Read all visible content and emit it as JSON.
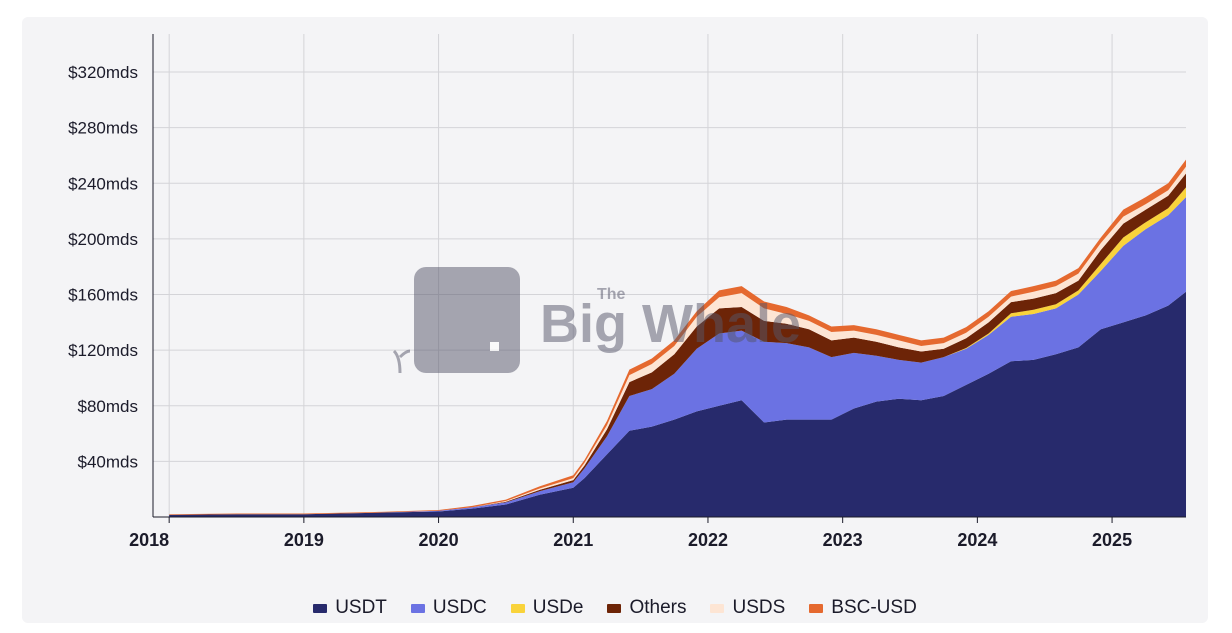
{
  "chart_data": {
    "type": "area",
    "stacked": true,
    "x": [
      "2018-01",
      "2018-07",
      "2019-01",
      "2019-07",
      "2020-01",
      "2020-04",
      "2020-07",
      "2020-10",
      "2021-01",
      "2021-02",
      "2021-04",
      "2021-06",
      "2021-08",
      "2021-10",
      "2021-12",
      "2022-02",
      "2022-04",
      "2022-06",
      "2022-08",
      "2022-10",
      "2022-12",
      "2023-02",
      "2023-04",
      "2023-06",
      "2023-08",
      "2023-10",
      "2023-12",
      "2024-02",
      "2024-04",
      "2024-06",
      "2024-08",
      "2024-10",
      "2024-12",
      "2025-02",
      "2025-04",
      "2025-06",
      "2025-08",
      "2025-09"
    ],
    "series": [
      {
        "name": "USDT",
        "color": "#272a6c",
        "values": [
          1.5,
          2,
          2,
          3,
          4,
          6,
          9,
          16,
          21,
          28,
          45,
          62,
          65,
          70,
          76,
          80,
          84,
          68,
          70,
          70,
          70,
          78,
          83,
          85,
          84,
          87,
          95,
          103,
          112,
          113,
          117,
          122,
          135,
          140,
          145,
          152,
          162,
          168
        ]
      },
      {
        "name": "USDC",
        "color": "#6b72e3",
        "values": [
          0,
          0,
          0,
          0,
          0.5,
          1,
          1.5,
          2.5,
          4,
          7,
          13,
          25,
          27,
          33,
          45,
          52,
          50,
          58,
          55,
          52,
          45,
          40,
          33,
          28,
          27,
          28,
          26,
          28,
          32,
          33,
          33,
          38,
          42,
          55,
          62,
          65,
          68,
          72
        ]
      },
      {
        "name": "USDe",
        "color": "#f9d33b",
        "values": [
          0,
          0,
          0,
          0,
          0,
          0,
          0,
          0,
          0,
          0,
          0,
          0,
          0,
          0,
          0,
          0,
          0,
          0,
          0,
          0,
          0,
          0,
          0,
          0,
          0,
          0,
          0.5,
          1,
          2.5,
          3,
          3,
          3,
          5,
          6,
          5,
          5,
          7,
          12
        ]
      },
      {
        "name": "Others",
        "color": "#6d2407",
        "values": [
          0,
          0,
          0,
          0,
          0,
          0,
          0.5,
          1,
          1.5,
          2,
          5,
          10,
          12,
          14,
          16,
          18,
          17,
          15,
          14,
          13,
          12,
          11,
          10,
          9,
          8,
          6,
          7,
          8,
          8,
          8,
          8,
          7,
          10,
          10,
          9,
          9,
          10,
          10
        ]
      },
      {
        "name": "USDS",
        "color": "#fde5d4",
        "values": [
          0,
          0,
          0,
          0,
          0,
          0,
          0.5,
          1,
          1.5,
          2,
          3,
          5,
          6,
          6,
          7,
          8,
          10,
          9,
          7,
          6,
          6,
          5,
          5,
          5,
          4,
          4,
          4,
          4,
          4,
          5,
          5,
          5,
          5,
          5,
          4,
          4,
          5,
          5
        ]
      },
      {
        "name": "BSC-USD",
        "color": "#e5692f",
        "values": [
          0.5,
          0.5,
          0.5,
          0.5,
          0.5,
          1,
          1,
          1.5,
          2,
          2,
          3,
          4,
          4,
          4,
          4,
          5,
          5,
          5,
          5,
          4,
          4,
          4,
          4,
          4,
          4,
          4,
          4,
          4,
          4,
          4,
          4,
          4,
          4,
          5,
          5,
          5,
          5,
          5
        ]
      }
    ],
    "yticks": [
      "$40mds",
      "$80mds",
      "$120mds",
      "$160mds",
      "$200mds",
      "$240mds",
      "$280mds",
      "$320mds"
    ],
    "ytick_values": [
      40,
      80,
      120,
      160,
      200,
      240,
      280,
      320
    ],
    "xticks": [
      "2018",
      "2019",
      "2020",
      "2021",
      "2022",
      "2023",
      "2024",
      "2025"
    ],
    "ylim": [
      0,
      345
    ],
    "grid": true,
    "legend_position": "bottom"
  },
  "watermark": {
    "brand_small": "The",
    "brand_name": "Big Whale"
  }
}
